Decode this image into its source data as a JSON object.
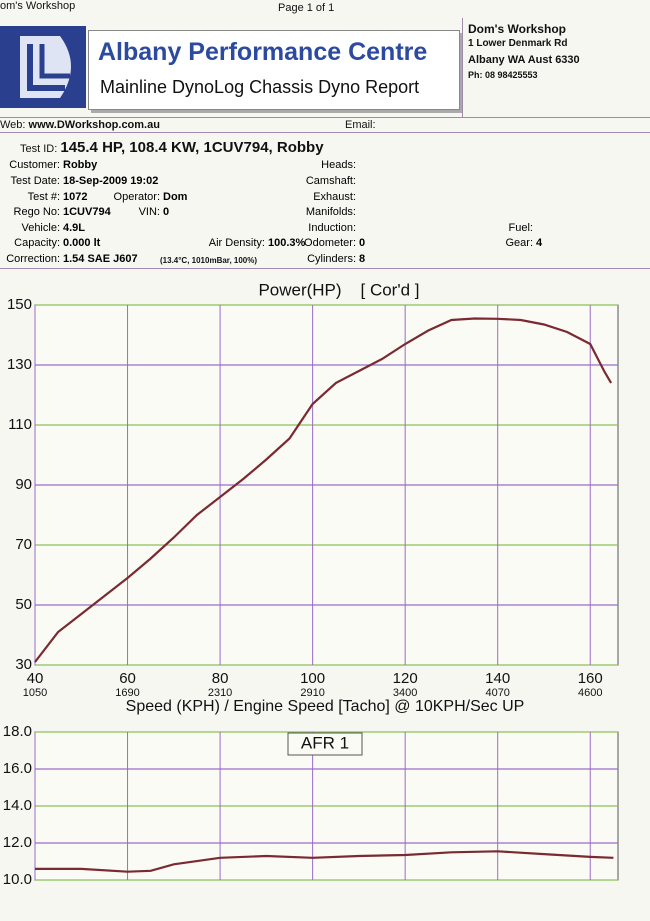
{
  "header": {
    "top_left": "om's Workshop",
    "page": "Page 1 of 1",
    "title": "Albany Performance Centre",
    "subtitle": "Mainline DynoLog Chassis Dyno Report",
    "address": [
      "Dom's Workshop",
      "1 Lower Denmark Rd",
      "Albany WA Aust 6330",
      "Ph: 08 98425553"
    ],
    "web_label": "Web:",
    "web": "www.DWorkshop.com.au",
    "email_label": "Email:"
  },
  "test": {
    "id_label": "Test ID:",
    "id": "145.4 HP, 108.4 KW, 1CUV794, Robby",
    "fields": [
      {
        "label": "Customer:",
        "value": "Robby"
      },
      {
        "label": "Test Date:",
        "value": "18-Sep-2009 19:02"
      },
      {
        "label": "Test #:",
        "value": "1072"
      },
      {
        "label": "Operator:",
        "value": "Dom"
      },
      {
        "label": "Rego No:",
        "value": "1CUV794"
      },
      {
        "label": "VIN:",
        "value": "0"
      },
      {
        "label": "Vehicle:",
        "value": "4.9L"
      },
      {
        "label": "Capacity:",
        "value": "0.000 lt"
      },
      {
        "label": "Air Density:",
        "value": "100.3%"
      },
      {
        "label": "Correction:",
        "value": "1.54 SAE J607"
      },
      {
        "label": "Heads:"
      },
      {
        "label": "Camshaft:"
      },
      {
        "label": "Exhaust:"
      },
      {
        "label": "Manifolds:"
      },
      {
        "label": "Induction:"
      },
      {
        "label": "Odometer:",
        "value": "0"
      },
      {
        "label": "Cylinders:",
        "value": "8"
      },
      {
        "label": "Fuel:"
      },
      {
        "label": "Gear:",
        "value": "4"
      }
    ],
    "conditions": "(13.4°C, 1010mBar, 100%)"
  },
  "chart_data": [
    {
      "type": "line",
      "title": "Power(HP)",
      "subtitle": "[ Cor'd ]",
      "x_label": "Speed (KPH) / Engine Speed [Tacho] @ 10KPH/Sec UP",
      "x": [
        40,
        45,
        50,
        55,
        60,
        65,
        70,
        75,
        80,
        85,
        90,
        95,
        100,
        105,
        110,
        115,
        120,
        125,
        130,
        135,
        140,
        145,
        150,
        155,
        160,
        163,
        164.5
      ],
      "values": [
        31,
        41,
        47,
        53,
        59,
        65.5,
        72.5,
        80,
        86,
        92,
        98.5,
        105.5,
        117,
        124,
        128,
        132,
        137,
        141.5,
        145,
        145.5,
        145.4,
        145,
        143.5,
        141,
        137,
        128,
        124
      ],
      "color": "#7a2a30",
      "xlim": [
        40,
        166
      ],
      "xticks": [
        40,
        60,
        80,
        100,
        120,
        140,
        160
      ],
      "rpm_ticks": [
        1050,
        1690,
        2310,
        2910,
        3400,
        4070,
        4600
      ],
      "ylim": [
        30,
        150
      ],
      "yticks": [
        30,
        50,
        70,
        90,
        110,
        130,
        150
      ],
      "grid": true
    },
    {
      "type": "line",
      "title": "AFR 1",
      "x": [
        40,
        50,
        60,
        65,
        70,
        80,
        90,
        100,
        110,
        120,
        130,
        140,
        150,
        160,
        165
      ],
      "values": [
        10.6,
        10.6,
        10.45,
        10.5,
        10.85,
        11.2,
        11.3,
        11.2,
        11.3,
        11.35,
        11.5,
        11.55,
        11.4,
        11.25,
        11.2
      ],
      "color": "#7a2a30",
      "xlim": [
        40,
        166
      ],
      "xticks": [
        40,
        60,
        80,
        100,
        120,
        140,
        160
      ],
      "ylim": [
        10,
        18
      ],
      "yticks": [
        {
          "value": 10,
          "label": "10.0"
        },
        {
          "value": 12,
          "label": "12.0"
        },
        {
          "value": 14,
          "label": "14.0"
        },
        {
          "value": 16,
          "label": "16.0"
        },
        {
          "value": 18,
          "label": "18.0"
        }
      ],
      "grid": true
    }
  ]
}
